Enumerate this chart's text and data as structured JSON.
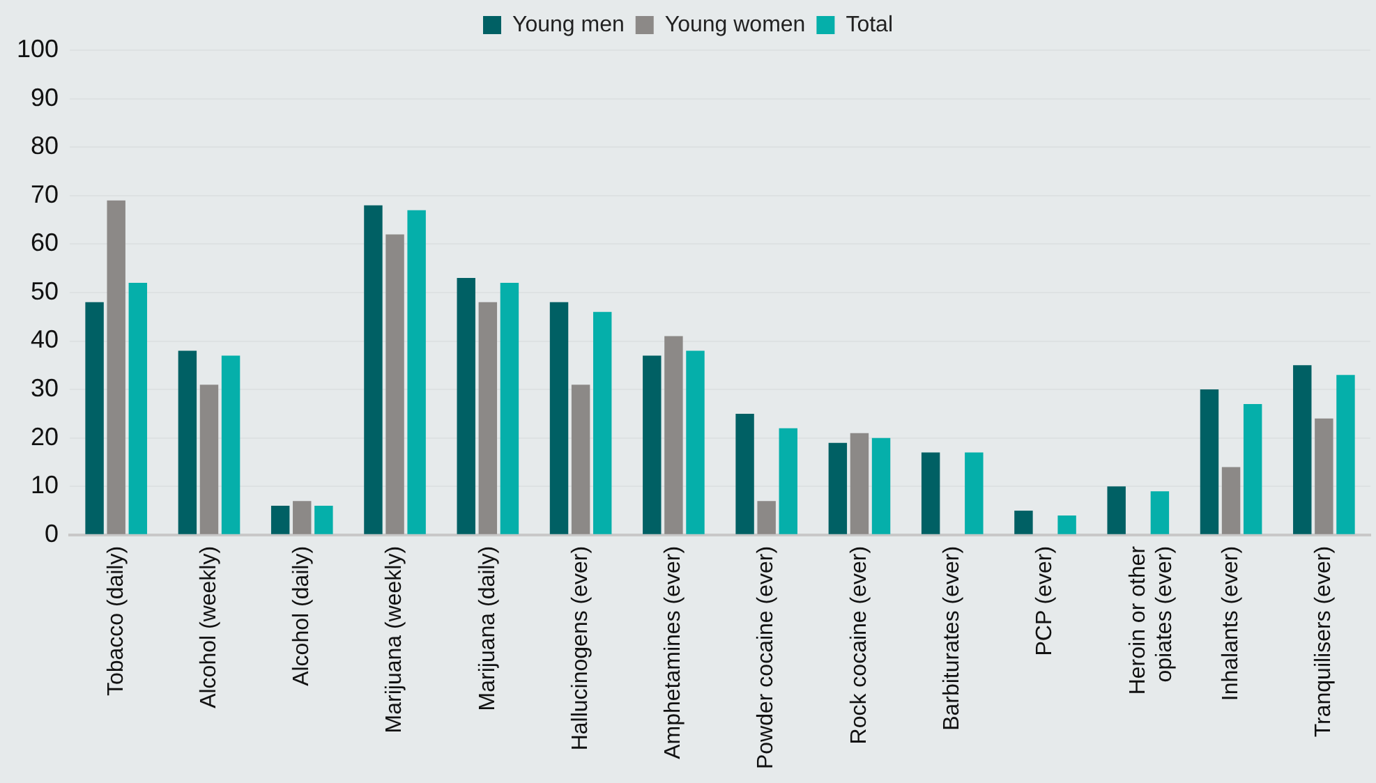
{
  "chart_data": {
    "type": "bar",
    "categories": [
      "Tobacco (daily)",
      "Alcohol (weekly)",
      "Alcohol (daily)",
      "Marijuana (weekly)",
      "Marijuana (daily)",
      "Hallucinogens (ever)",
      "Amphetamines (ever)",
      "Powder cocaine (ever)",
      "Rock cocaine (ever)",
      "Barbiturates (ever)",
      "PCP (ever)",
      "Heroin or other opiates (ever)",
      "Inhalants (ever)",
      "Tranquilisers (ever)"
    ],
    "series": [
      {
        "name": "Young men",
        "color": "#006064",
        "values": [
          48,
          38,
          6,
          68,
          53,
          48,
          37,
          25,
          19,
          17,
          5,
          10,
          30,
          35
        ]
      },
      {
        "name": "Young women",
        "color": "#8c8987",
        "values": [
          69,
          31,
          7,
          62,
          48,
          31,
          41,
          7,
          21,
          0,
          0,
          0,
          14,
          24
        ]
      },
      {
        "name": "Total",
        "color": "#05afaa",
        "values": [
          52,
          37,
          6,
          67,
          52,
          46,
          38,
          22,
          20,
          17,
          4,
          9,
          27,
          33
        ]
      }
    ],
    "ylim": [
      0,
      100
    ],
    "yticks": [
      0,
      10,
      20,
      30,
      40,
      50,
      60,
      70,
      80,
      90,
      100
    ],
    "grid": "y",
    "legend": "top"
  }
}
